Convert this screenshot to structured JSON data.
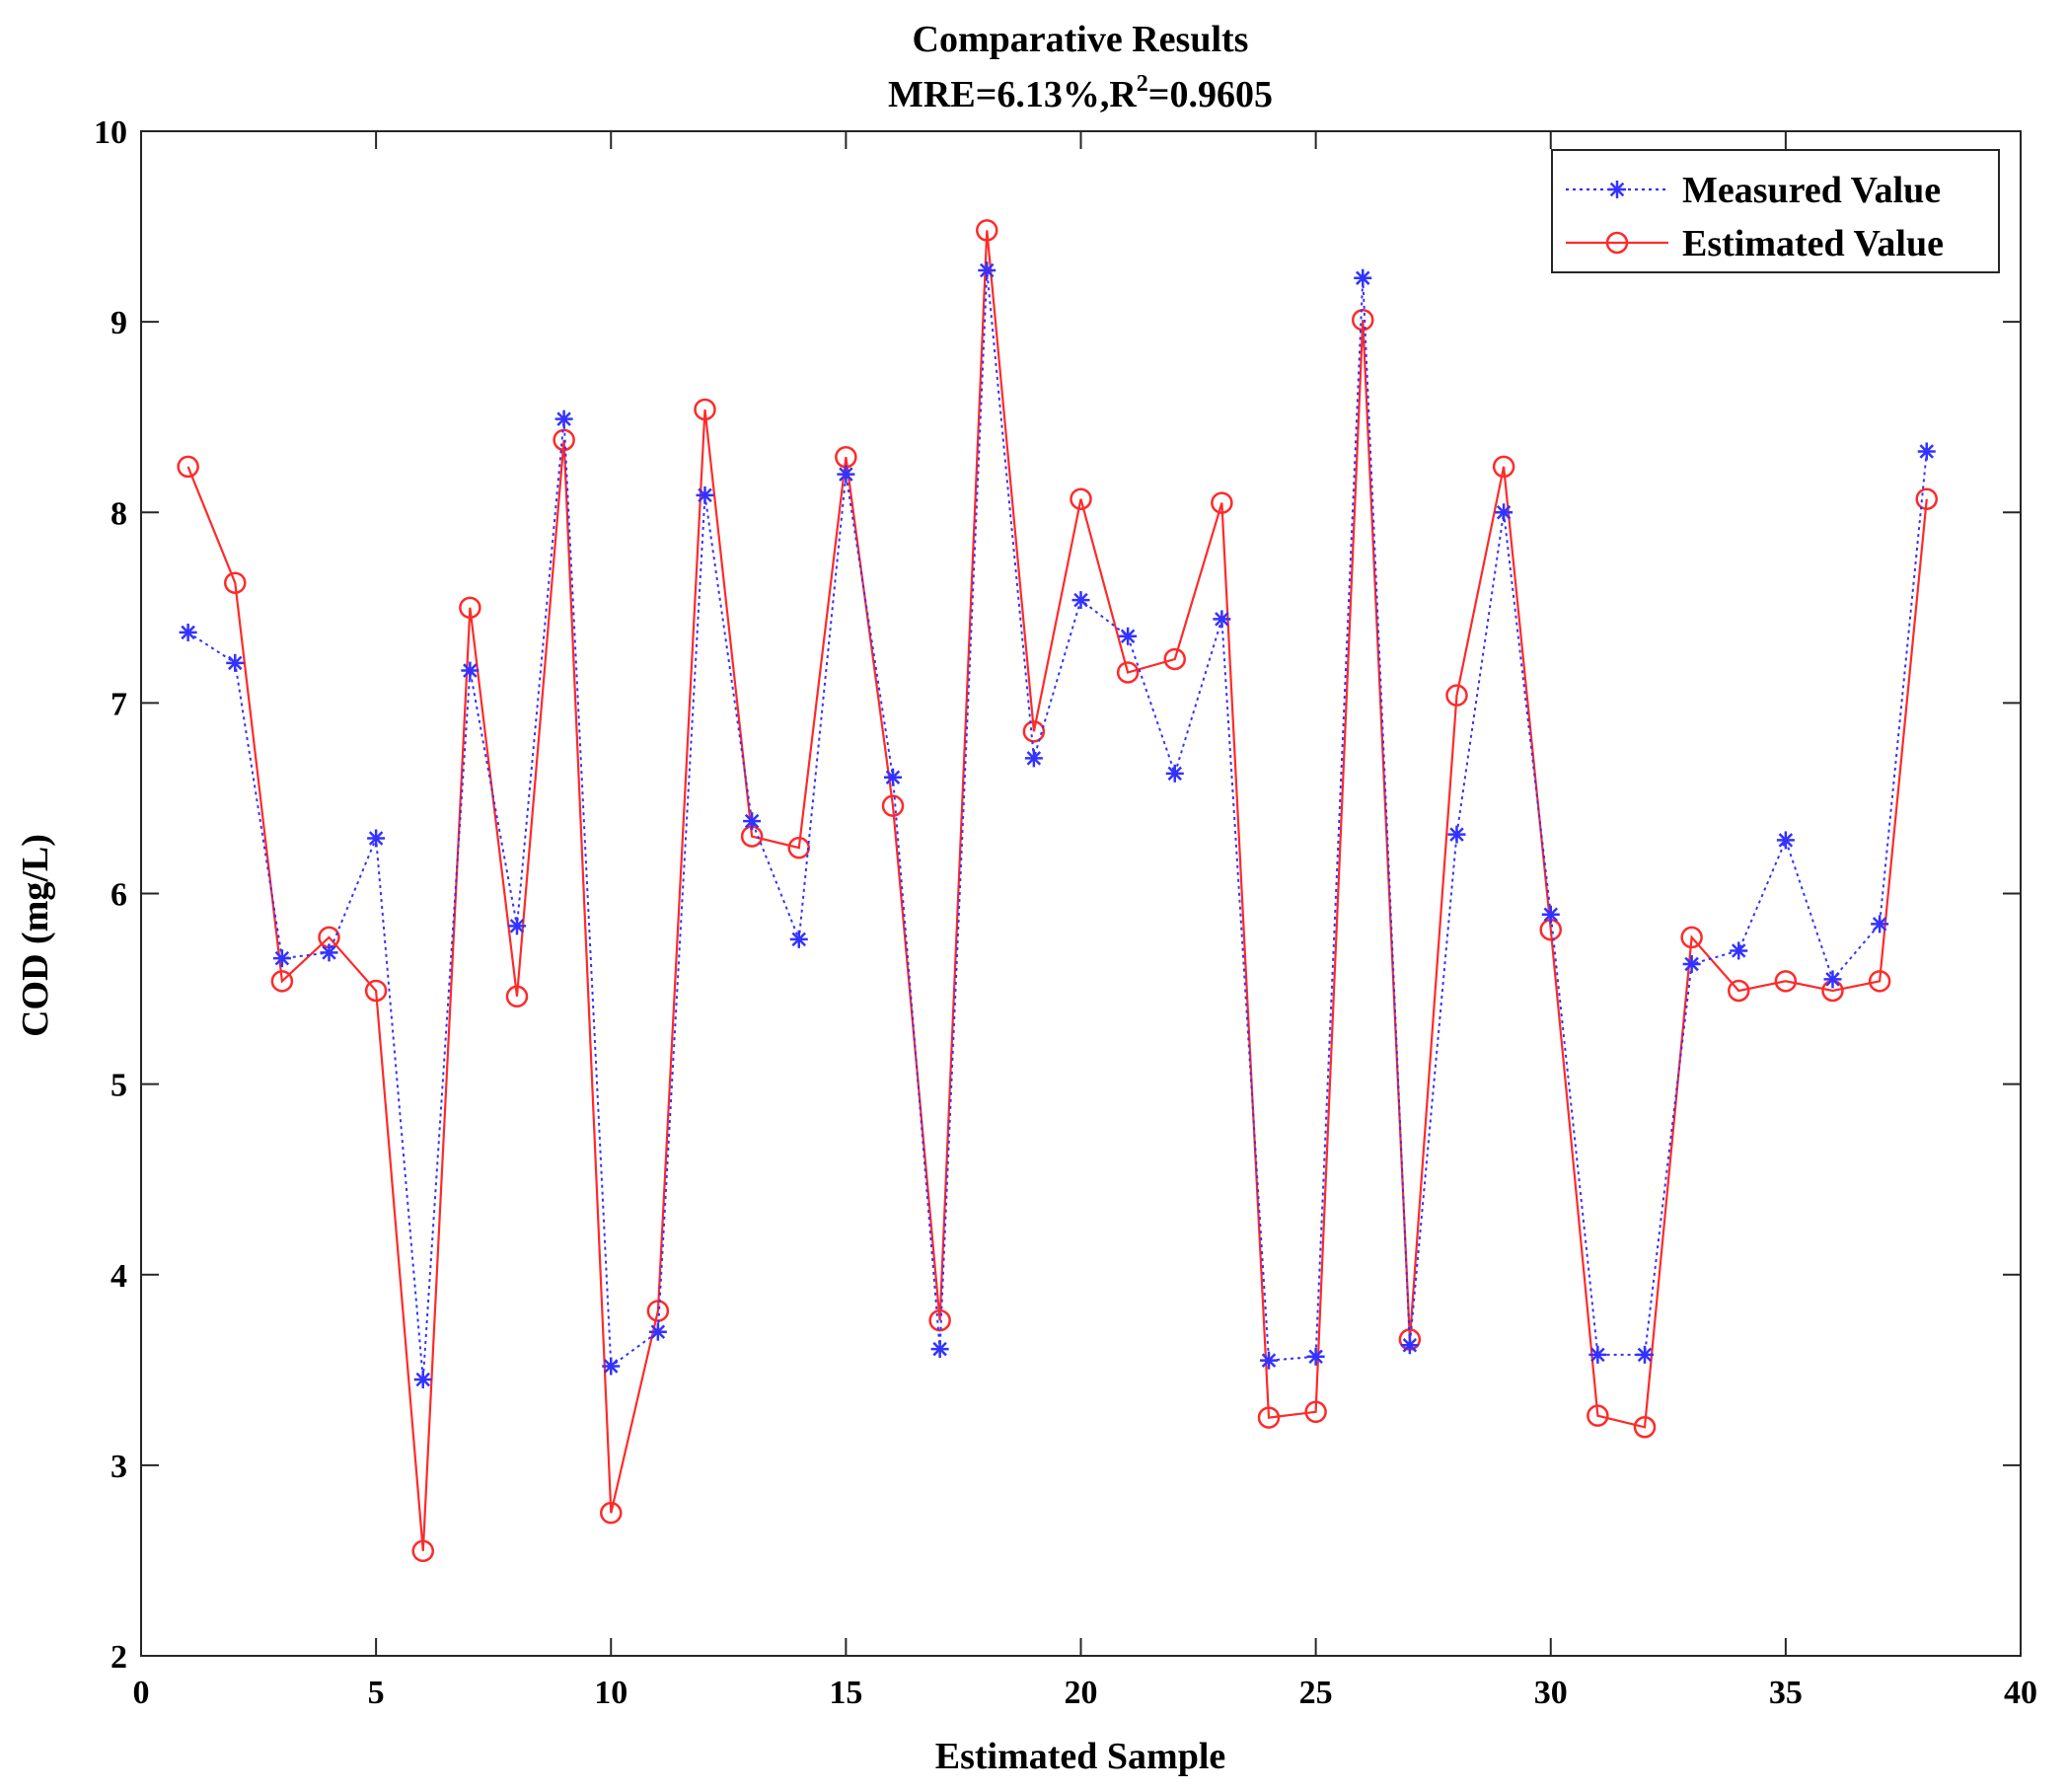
{
  "chart_data": {
    "type": "line",
    "title": "Comparative Results",
    "subtitle_prefix": "MRE=6.13%,R",
    "subtitle_sup": "2",
    "subtitle_suffix": "=0.9605",
    "xlabel": "Estimated Sample",
    "ylabel": "COD (mg/L)",
    "xlim": [
      0,
      40
    ],
    "ylim": [
      2,
      10
    ],
    "xticks": [
      "0",
      "5",
      "10",
      "15",
      "20",
      "25",
      "30",
      "35",
      "40"
    ],
    "yticks": [
      "2",
      "3",
      "4",
      "5",
      "6",
      "7",
      "8",
      "9",
      "10"
    ],
    "grid": false,
    "legend_position": "top-right",
    "x": [
      1,
      2,
      3,
      4,
      5,
      6,
      7,
      8,
      9,
      10,
      11,
      12,
      13,
      14,
      15,
      16,
      17,
      18,
      19,
      20,
      21,
      22,
      23,
      24,
      25,
      26,
      27,
      28,
      29,
      30,
      31,
      32,
      33,
      34,
      35,
      36,
      37,
      38
    ],
    "series": [
      {
        "name": "Measured Value",
        "color": "#3333ff",
        "line_style": "dotted",
        "marker": "asterisk",
        "values": [
          7.37,
          7.21,
          5.66,
          5.69,
          6.29,
          3.45,
          7.17,
          5.83,
          8.49,
          3.52,
          3.7,
          8.09,
          6.38,
          5.76,
          8.2,
          6.61,
          3.61,
          9.27,
          6.71,
          7.54,
          7.35,
          6.63,
          7.44,
          3.55,
          3.57,
          9.23,
          3.63,
          6.31,
          8.0,
          5.89,
          3.58,
          3.58,
          5.63,
          5.7,
          6.28,
          5.55,
          5.84,
          8.32
        ]
      },
      {
        "name": "Estimated Value",
        "color": "#ff2a2a",
        "line_style": "solid",
        "marker": "circle",
        "values": [
          8.24,
          7.63,
          5.54,
          5.77,
          5.49,
          2.55,
          7.5,
          5.46,
          8.38,
          2.75,
          3.81,
          8.54,
          6.3,
          6.24,
          8.29,
          6.46,
          3.76,
          9.48,
          6.85,
          8.07,
          7.16,
          7.23,
          8.05,
          3.25,
          3.28,
          9.01,
          3.66,
          7.04,
          8.24,
          5.81,
          3.26,
          3.2,
          5.77,
          5.49,
          5.54,
          5.49,
          5.54,
          8.07
        ]
      }
    ]
  }
}
